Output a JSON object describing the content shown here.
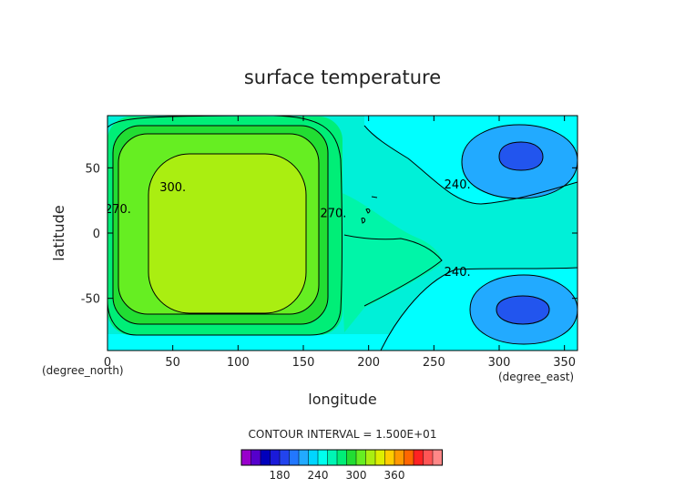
{
  "chart_data": {
    "type": "heatmap",
    "title": "surface temperature",
    "xlabel": "longitude",
    "ylabel": "latitude",
    "x_unit": "(degree_east)",
    "y_unit": "(degree_north)",
    "xlim": [
      0,
      360
    ],
    "ylim": [
      -90,
      90
    ],
    "x_ticks": [
      0,
      50,
      100,
      150,
      200,
      250,
      300,
      350
    ],
    "y_ticks": [
      -50,
      0,
      50
    ],
    "contour_interval_label": "CONTOUR INTERVAL = 1.500E+01",
    "contour_labels": [
      {
        "text": "300.",
        "x": 50,
        "y": 35
      },
      {
        "text": "270.",
        "x": 8,
        "y": 18
      },
      {
        "text": "270.",
        "x": 173,
        "y": 15
      },
      {
        "text": "240.",
        "x": 268,
        "y": 37
      },
      {
        "text": "240.",
        "x": 268,
        "y": -30
      }
    ],
    "colorbar": {
      "colors": [
        "#9900cc",
        "#5500cc",
        "#0000bb",
        "#1a1ad9",
        "#2244ee",
        "#2277ff",
        "#22aaff",
        "#00d5ff",
        "#00ffee",
        "#00f5b4",
        "#00ee77",
        "#22dd33",
        "#66ee22",
        "#aaee11",
        "#ddee00",
        "#ffcc00",
        "#ff9900",
        "#ff6600",
        "#ff2222",
        "#ff5555",
        "#ff8888"
      ],
      "tick_values": [
        180,
        240,
        300,
        360
      ],
      "tick_positions": [
        4,
        8,
        12,
        16
      ]
    }
  }
}
